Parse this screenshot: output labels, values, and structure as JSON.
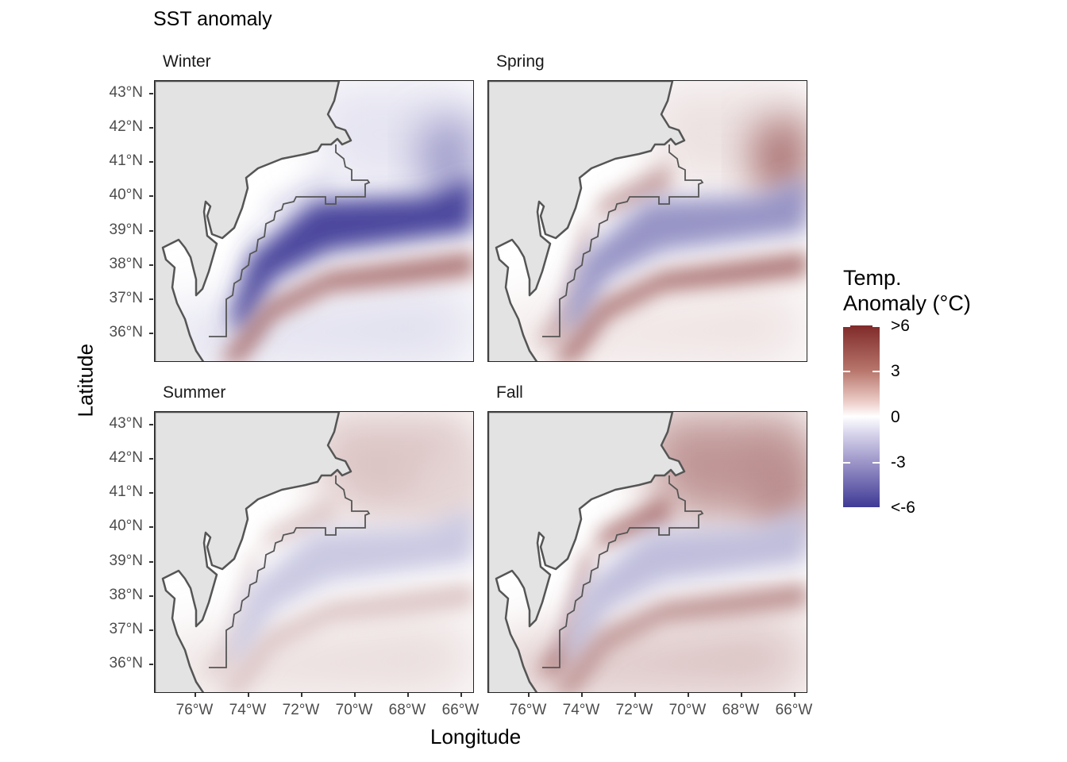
{
  "title": "SST anomaly",
  "facets": [
    {
      "label": "Winter",
      "anomaly": {
        "north": -0.5,
        "shelf_break": -5.5,
        "slope_warm": 3.5,
        "nearshore": -0.5,
        "south": -0.8,
        "offshore_ne": -2.5
      }
    },
    {
      "label": "Spring",
      "anomaly": {
        "north": 0.5,
        "shelf_break": -2.8,
        "slope_warm": 3.5,
        "nearshore": 2.0,
        "south": 0.6,
        "offshore_ne": 3.5
      }
    },
    {
      "label": "Summer",
      "anomaly": {
        "north": 1.2,
        "shelf_break": -1.2,
        "slope_warm": 1.2,
        "nearshore": 1.0,
        "south": 0.8,
        "offshore_ne": 0.8
      }
    },
    {
      "label": "Fall",
      "anomaly": {
        "north": 2.5,
        "shelf_break": -1.5,
        "slope_warm": 2.6,
        "nearshore": 3.2,
        "south": 1.6,
        "offshore_ne": 2.8
      }
    }
  ],
  "axes": {
    "x_title": "Longitude",
    "y_title": "Latitude",
    "lat_ticks": [
      "43°N",
      "42°N",
      "41°N",
      "40°N",
      "39°N",
      "38°N",
      "37°N",
      "36°N"
    ],
    "lon_ticks": [
      "76°W",
      "74°W",
      "72°W",
      "70°W",
      "68°W",
      "66°W"
    ]
  },
  "legend": {
    "title_line1": "Temp.",
    "title_line2": "Anomaly (°C)",
    "labels": [
      ">6",
      "3",
      "0",
      "-3",
      "<-6"
    ],
    "colors": {
      "high": "#7f2a2a",
      "mid": "#ffffff",
      "low": "#3f3a96",
      "land": "#e3e3e3",
      "coast": "#555555"
    }
  }
}
